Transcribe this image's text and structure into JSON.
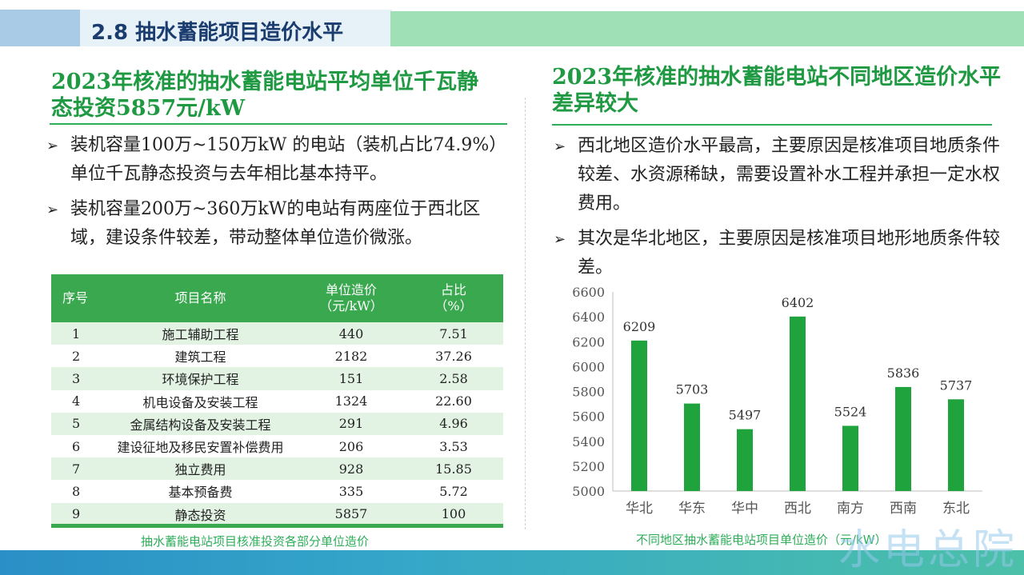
{
  "header": {
    "title": "2.8 抽水蓄能项目造价水平"
  },
  "left": {
    "heading": "2023年核准的抽水蓄能电站平均单位千瓦静态投资5857元/kW",
    "bullets": [
      "装机容量100万~150万kW 的电站（装机占比74.9%）单位千瓦静态投资与去年相比基本持平。",
      "装机容量200万~360万kW的电站有两座位于西北区域，建设条件较差，带动整体单位造价微涨。"
    ],
    "table": {
      "headers": [
        "序号",
        "项目名称",
        "单位造价\n（元/kW）",
        "占比\n（%）"
      ],
      "rows": [
        [
          "1",
          "施工辅助工程",
          "440",
          "7.51"
        ],
        [
          "2",
          "建筑工程",
          "2182",
          "37.26"
        ],
        [
          "3",
          "环境保护工程",
          "151",
          "2.58"
        ],
        [
          "4",
          "机电设备及安装工程",
          "1324",
          "22.60"
        ],
        [
          "5",
          "金属结构设备及安装工程",
          "291",
          "4.96"
        ],
        [
          "6",
          "建设征地及移民安置补偿费用",
          "206",
          "3.53"
        ],
        [
          "7",
          "独立费用",
          "928",
          "15.85"
        ],
        [
          "8",
          "基本预备费",
          "335",
          "5.72"
        ],
        [
          "9",
          "静态投资",
          "5857",
          "100"
        ]
      ],
      "caption": "抽水蓄能电站项目核准投资各部分单位造价"
    }
  },
  "right": {
    "heading": "2023年核准的抽水蓄能电站不同地区造价水平差异较大",
    "bullets": [
      "西北地区造价水平最高，主要原因是核准项目地质条件较差、水资源稀缺，需要设置补水工程并承担一定水权费用。",
      "其次是华北地区，主要原因是核准项目地形地质条件较差。"
    ],
    "caption": "不同地区抽水蓄能电站项目单位造价（元/kW）"
  },
  "chart_data": {
    "type": "bar",
    "title": "",
    "categories": [
      "华北",
      "华东",
      "华中",
      "西北",
      "南方",
      "西南",
      "东北"
    ],
    "values": [
      6209,
      5703,
      5497,
      6402,
      5524,
      5836,
      5737
    ],
    "ylim": [
      5000,
      6600
    ],
    "yticks": [
      5000,
      5200,
      5400,
      5600,
      5800,
      6000,
      6200,
      6400,
      6600
    ],
    "xlabel": "",
    "ylabel": "",
    "bar_color": "#1fa33d",
    "grid": false
  },
  "watermark": "水电总院",
  "colors": {
    "accent_green": "#1f9a43",
    "table_header": "#3aa84f",
    "title_blue": "#1a3c6e"
  }
}
